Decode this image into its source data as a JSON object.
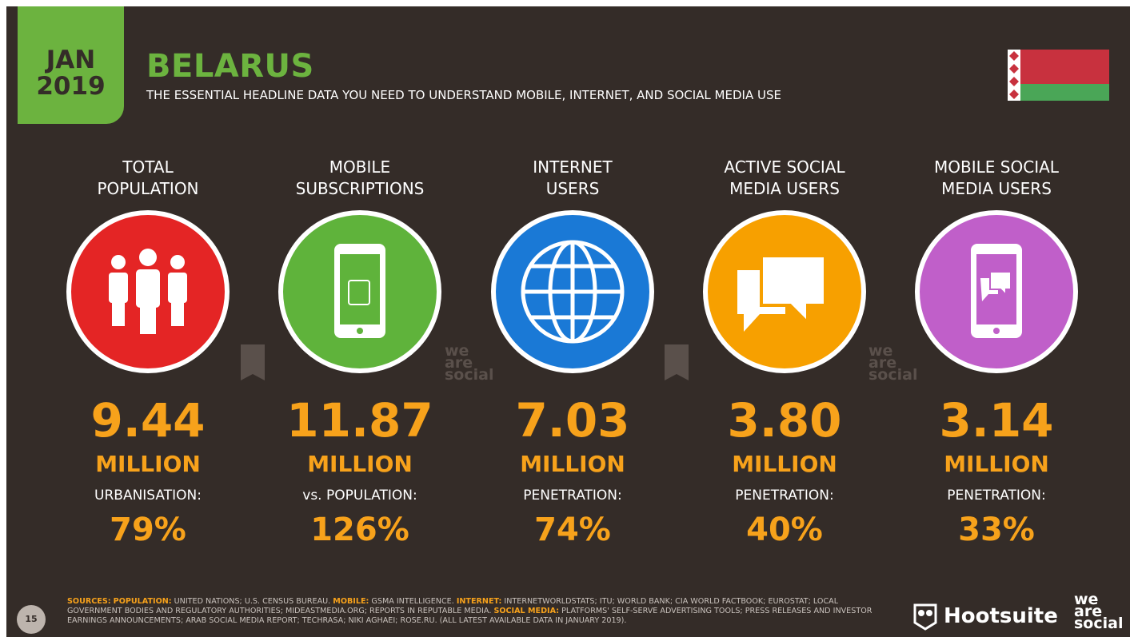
{
  "header": {
    "month": "JAN",
    "year": "2019",
    "title": "BELARUS",
    "subtitle": "THE ESSENTIAL HEADLINE DATA YOU NEED TO UNDERSTAND MOBILE, INTERNET, AND SOCIAL MEDIA USE"
  },
  "stats": [
    {
      "label": [
        "TOTAL",
        "POPULATION"
      ],
      "value": "9.44",
      "unit": "MILLION",
      "sub_label": "URBANISATION:",
      "sub_value": "79%"
    },
    {
      "label": [
        "MOBILE",
        "SUBSCRIPTIONS"
      ],
      "value": "11.87",
      "unit": "MILLION",
      "sub_label": "vs. POPULATION:",
      "sub_value": "126%"
    },
    {
      "label": [
        "INTERNET",
        "USERS"
      ],
      "value": "7.03",
      "unit": "MILLION",
      "sub_label": "PENETRATION:",
      "sub_value": "74%"
    },
    {
      "label": [
        "ACTIVE SOCIAL",
        "MEDIA USERS"
      ],
      "value": "3.80",
      "unit": "MILLION",
      "sub_label": "PENETRATION:",
      "sub_value": "40%"
    },
    {
      "label": [
        "MOBILE SOCIAL",
        "MEDIA USERS"
      ],
      "value": "3.14",
      "unit": "MILLION",
      "sub_label": "PENETRATION:",
      "sub_value": "33%"
    }
  ],
  "watermark": [
    "we",
    "are",
    "social"
  ],
  "footer": {
    "page": "15",
    "sources": [
      {
        "text": "SOURCES:",
        "highlight": true
      },
      {
        "text": " ",
        "highlight": false
      },
      {
        "text": "POPULATION:",
        "highlight": true
      },
      {
        "text": " UNITED NATIONS; U.S. CENSUS BUREAU. ",
        "highlight": false
      },
      {
        "text": "MOBILE:",
        "highlight": true
      },
      {
        "text": " GSMA INTELLIGENCE. ",
        "highlight": false
      },
      {
        "text": "INTERNET:",
        "highlight": true
      },
      {
        "text": " INTERNETWORLDSTATS; ITU; WORLD BANK; CIA WORLD FACTBOOK; EUROSTAT; LOCAL GOVERNMENT BODIES AND REGULATORY AUTHORITIES; MIDEASTMEDIA.ORG; REPORTS IN REPUTABLE MEDIA. ",
        "highlight": false
      },
      {
        "text": "SOCIAL MEDIA:",
        "highlight": true
      },
      {
        "text": " PLATFORMS' SELF-SERVE ADVERTISING TOOLS; PRESS RELEASES AND INVESTOR EARNINGS ANNOUNCEMENTS; ARAB SOCIAL MEDIA REPORT; TECHRASA; NIKI AGHAEI; ROSE.RU. (ALL LATEST AVAILABLE DATA IN JANUARY 2019).",
        "highlight": false
      }
    ],
    "brand": "Hootsuite",
    "brand2": [
      "we",
      "are",
      "social"
    ]
  }
}
